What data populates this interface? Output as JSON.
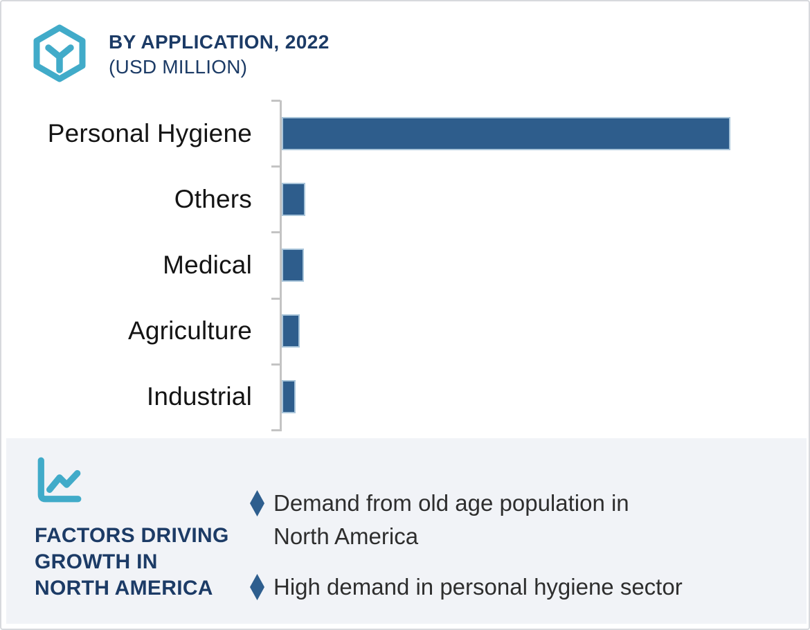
{
  "header": {
    "title": "BY APPLICATION, 2022",
    "subtitle": "(USD MILLION)",
    "icon": "hexagon-box-icon"
  },
  "chart_data": {
    "type": "bar",
    "orientation": "horizontal",
    "title": "BY APPLICATION, 2022 (USD MILLION)",
    "categories": [
      "Personal Hygiene",
      "Others",
      "Medical",
      "Agriculture",
      "Industrial"
    ],
    "values": [
      100,
      5.2,
      4.9,
      4.0,
      3.1
    ],
    "value_note": "No numeric axis labels are shown in the figure; values are relative bar lengths as % of the largest bar (Personal Hygiene).",
    "xlabel": "",
    "ylabel": "",
    "grid": false,
    "legend": false,
    "axis_ticks": 6,
    "bar_color": "#2e5d8c"
  },
  "factors": {
    "icon": "line-chart-icon",
    "heading": "FACTORS DRIVING\nGROWTH IN\nNORTH AMERICA",
    "bullet_marker": "diamond-icon",
    "bullets": [
      "Demand from old age population in\nNorth America",
      "High demand in personal hygiene sector"
    ]
  },
  "colors": {
    "accent_teal": "#41abc9",
    "navy": "#1c3b66",
    "bar_blue": "#2e5d8c",
    "bar_border": "#a9c5da",
    "panel_bg": "#f1f3f7",
    "axis_gray": "#c4c4c4",
    "label_black": "#141414"
  }
}
